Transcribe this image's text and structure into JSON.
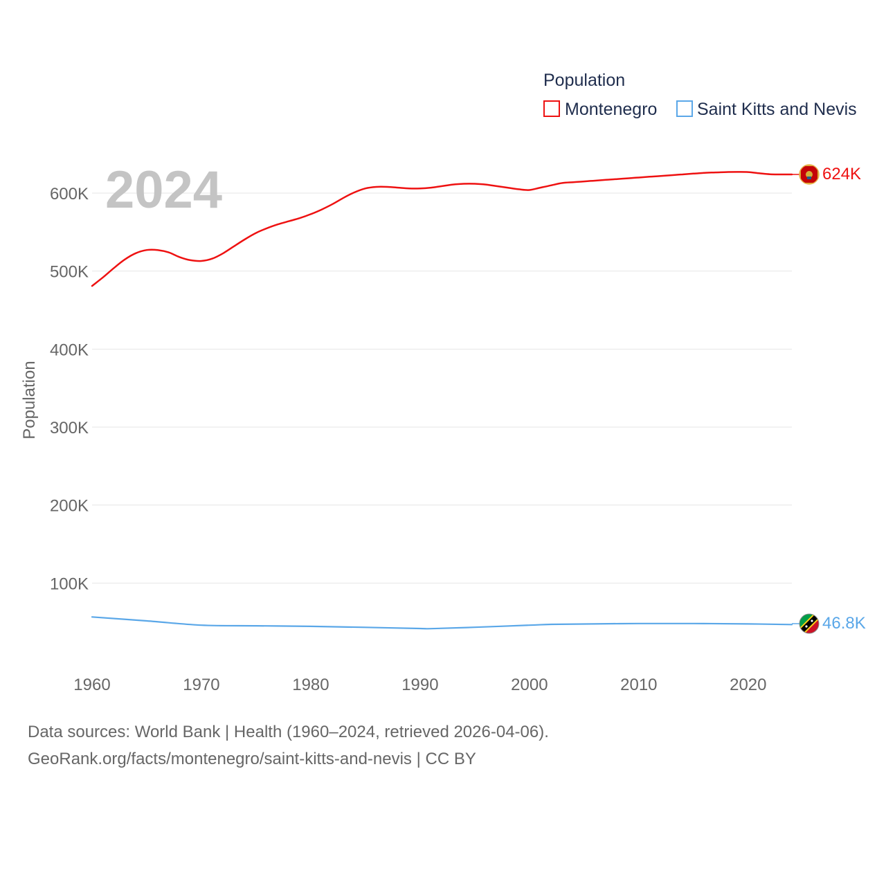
{
  "legend": {
    "title": "Population",
    "items": [
      {
        "name": "Montenegro",
        "color": "#ee1111"
      },
      {
        "name": "Saint Kitts and Nevis",
        "color": "#5aa7e8"
      }
    ]
  },
  "year_label": "2024",
  "end_labels": {
    "montenegro": "624K",
    "saint_kitts": "46.8K"
  },
  "flag_icons": {
    "montenegro": "montenegro-flag-icon",
    "saint_kitts": "saint-kitts-and-nevis-flag-icon"
  },
  "footer": {
    "line1": "Data sources: World Bank | Health (1960–2024, retrieved 2026-04-06).",
    "line2": "GeoRank.org/facts/montenegro/saint-kitts-and-nevis | CC BY"
  },
  "chart_data": {
    "type": "line",
    "title": "",
    "xlabel": "",
    "ylabel": "Population",
    "xlim": [
      1960,
      2024
    ],
    "ylim": [
      0,
      640000
    ],
    "grid": true,
    "legend_position": "top-right",
    "x_ticks": [
      1960,
      1970,
      1980,
      1990,
      2000,
      2010,
      2020
    ],
    "x_tick_labels": [
      "1960",
      "1970",
      "1980",
      "1990",
      "2000",
      "2010",
      "2020"
    ],
    "y_ticks": [
      100000,
      200000,
      300000,
      400000,
      500000,
      600000
    ],
    "y_tick_labels": [
      "100K",
      "200K",
      "300K",
      "400K",
      "500K",
      "600K"
    ],
    "series": [
      {
        "name": "Montenegro",
        "color": "#ee1111",
        "x": [
          1960,
          1961,
          1962,
          1963,
          1964,
          1965,
          1966,
          1967,
          1968,
          1969,
          1970,
          1971,
          1972,
          1973,
          1974,
          1975,
          1976,
          1977,
          1978,
          1979,
          1980,
          1981,
          1982,
          1983,
          1984,
          1985,
          1986,
          1987,
          1988,
          1989,
          1990,
          1991,
          1992,
          1993,
          1994,
          1995,
          1996,
          1997,
          1998,
          1999,
          2000,
          2001,
          2002,
          2003,
          2004,
          2005,
          2006,
          2007,
          2008,
          2009,
          2010,
          2011,
          2012,
          2013,
          2014,
          2015,
          2016,
          2017,
          2018,
          2019,
          2020,
          2021,
          2022,
          2023,
          2024
        ],
        "values": [
          481000,
          492000,
          504000,
          515000,
          523000,
          527000,
          527000,
          524000,
          518000,
          514000,
          513000,
          516000,
          523000,
          532000,
          541000,
          549000,
          555000,
          560000,
          564000,
          568000,
          573000,
          579000,
          586000,
          594000,
          601000,
          606000,
          608000,
          608000,
          607000,
          606000,
          606000,
          607000,
          609000,
          611000,
          612000,
          612000,
          611000,
          609000,
          607000,
          605000,
          604000,
          607000,
          610000,
          613000,
          614000,
          615000,
          616000,
          617000,
          618000,
          619000,
          620000,
          621000,
          622000,
          623000,
          624000,
          625000,
          626000,
          626500,
          627000,
          627200,
          627000,
          625500,
          624200,
          624000,
          624000
        ]
      },
      {
        "name": "Saint Kitts and Nevis",
        "color": "#5aa7e8",
        "x": [
          1960,
          1965,
          1970,
          1975,
          1980,
          1985,
          1990,
          1991,
          1995,
          2000,
          2002,
          2005,
          2010,
          2015,
          2020,
          2024
        ],
        "values": [
          56500,
          51500,
          46000,
          45200,
          44500,
          43200,
          41700,
          41500,
          43300,
          46000,
          47000,
          47500,
          48100,
          48100,
          47600,
          46800
        ]
      }
    ]
  }
}
